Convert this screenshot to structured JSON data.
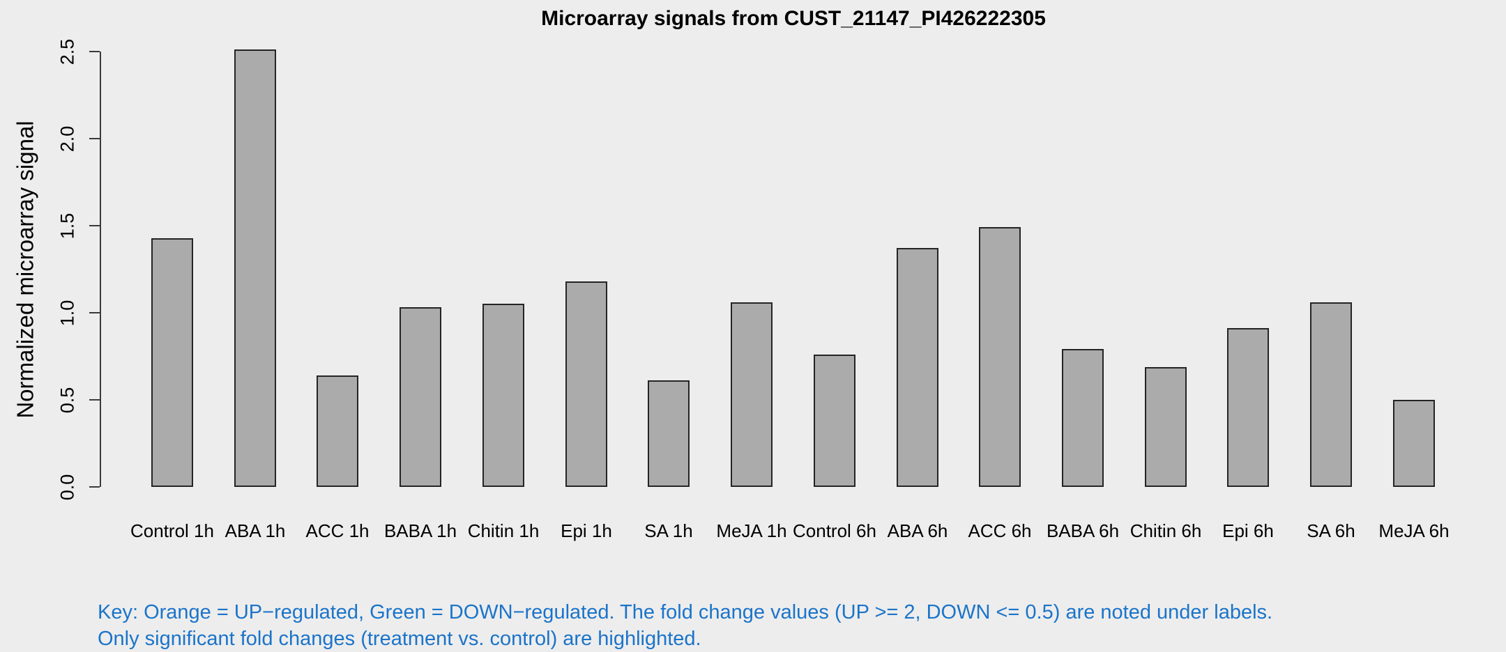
{
  "chart_data": {
    "type": "bar",
    "title": "Microarray signals from CUST_21147_PI426222305",
    "xlabel": "",
    "ylabel": "Normalized microarray signal",
    "categories": [
      "Control 1h",
      "ABA 1h",
      "ACC 1h",
      "BABA 1h",
      "Chitin 1h",
      "Epi 1h",
      "SA 1h",
      "MeJA 1h",
      "Control 6h",
      "ABA 6h",
      "ACC 6h",
      "BABA 6h",
      "Chitin 6h",
      "Epi 6h",
      "SA 6h",
      "MeJA 6h"
    ],
    "values": [
      1.43,
      2.51,
      0.64,
      1.03,
      1.05,
      1.18,
      0.61,
      1.06,
      0.76,
      1.37,
      1.49,
      0.79,
      0.69,
      0.91,
      1.06,
      0.5
    ],
    "ylim": [
      0,
      2.5
    ],
    "yticks": [
      0.0,
      0.5,
      1.0,
      1.5,
      2.0,
      2.5
    ],
    "ytick_labels": [
      "0.0",
      "0.5",
      "1.0",
      "1.5",
      "2.0",
      "2.5"
    ],
    "grid": false,
    "legend": "none",
    "colors": {
      "background": "#EDEDED",
      "bar_fill": "#ABABAB",
      "bar_border": "#242424",
      "axis": "#3A3A3A",
      "text": "#000000",
      "key_text": "#1B74C9"
    }
  },
  "footnote": {
    "line1": "Key: Orange = UP−regulated, Green = DOWN−regulated. The fold change values (UP >= 2, DOWN <= 0.5) are noted under labels.",
    "line2": "Only significant fold changes (treatment vs. control) are highlighted."
  }
}
